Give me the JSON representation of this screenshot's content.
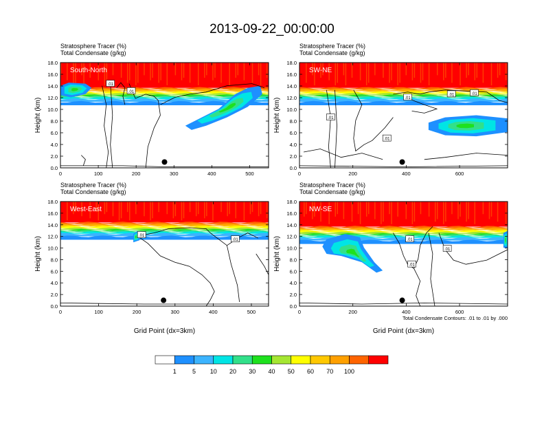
{
  "title": "2013-09-22_00:00:00",
  "panel_header": {
    "line1": "Stratosphere Tracer   (%)",
    "line2": "Total Condensate   (g/kg)"
  },
  "contour_note": "Total Condensate Contours: .01 to .01 by .000",
  "contour_label": ".01",
  "colors": {
    "levels": [
      "#ffffff",
      "#1e90ff",
      "#3cb4ff",
      "#00e5e5",
      "#32e08a",
      "#1ee11e",
      "#a5e632",
      "#ffff00",
      "#ffc800",
      "#ffa000",
      "#ff6400",
      "#ff0000"
    ],
    "marker": "#000000"
  },
  "colorbar": {
    "labels": [
      "1",
      "5",
      "10",
      "20",
      "30",
      "40",
      "50",
      "60",
      "70",
      "100"
    ]
  },
  "chart_data": [
    {
      "type": "heatmap",
      "panel": "South-North",
      "xlabel": "",
      "ylabel": "Height (km)",
      "xlim": [
        0,
        550
      ],
      "ylim": [
        0,
        18
      ],
      "xticks": [
        "0",
        "100",
        "200",
        "300",
        "400",
        "500"
      ],
      "yticks": [
        "0.0",
        "2.0",
        "4.0",
        "6.0",
        "8.0",
        "10.0",
        "12.0",
        "14.0",
        "16.0",
        "18.0"
      ],
      "marker": [
        275,
        1.0
      ]
    },
    {
      "type": "heatmap",
      "panel": "SW-NE",
      "xlabel": "",
      "ylabel": "Height (km)",
      "xlim": [
        0,
        780
      ],
      "ylim": [
        0,
        18
      ],
      "xticks": [
        "0",
        "200",
        "400",
        "600"
      ],
      "yticks": [
        "0.0",
        "2.0",
        "4.0",
        "6.0",
        "8.0",
        "10.0",
        "12.0",
        "14.0",
        "16.0",
        "18.0"
      ],
      "marker": [
        385,
        1.0
      ]
    },
    {
      "type": "heatmap",
      "panel": "West-East",
      "xlabel": "Grid Point (dx=3km)",
      "ylabel": "Height (km)",
      "xlim": [
        0,
        545
      ],
      "ylim": [
        0,
        18
      ],
      "xticks": [
        "0",
        "100",
        "200",
        "300",
        "400",
        "500"
      ],
      "yticks": [
        "0.0",
        "2.0",
        "4.0",
        "6.0",
        "8.0",
        "10.0",
        "12.0",
        "14.0",
        "16.0",
        "18.0"
      ],
      "marker": [
        270,
        1.0
      ]
    },
    {
      "type": "heatmap",
      "panel": "NW-SE",
      "xlabel": "Grid Point (dx=3km)",
      "ylabel": "Height (km)",
      "xlim": [
        0,
        780
      ],
      "ylim": [
        0,
        18
      ],
      "xticks": [
        "0",
        "200",
        "400",
        "600"
      ],
      "yticks": [
        "0.0",
        "2.0",
        "4.0",
        "6.0",
        "8.0",
        "10.0",
        "12.0",
        "14.0",
        "16.0",
        "18.0"
      ],
      "marker": [
        385,
        1.0
      ]
    }
  ]
}
